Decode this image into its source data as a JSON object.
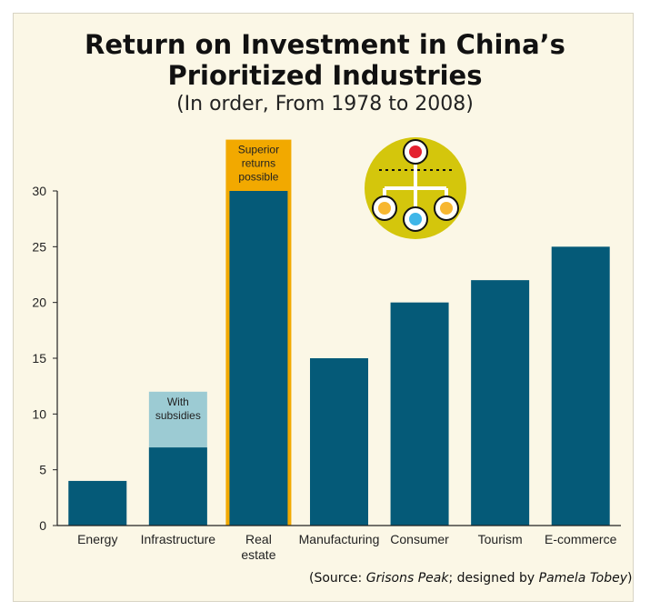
{
  "title_line1": "Return on Investment in China’s",
  "title_line2": "Prioritized  Industries",
  "subtitle": "(In order, From 1978 to 2008)",
  "source": {
    "prefix": "(Source: ",
    "org": "Grisons Peak",
    "middle": "; designed by ",
    "designer": "Pamela Tobey",
    "suffix": ")"
  },
  "icon": "org-chart-icon",
  "colors": {
    "bar": "#055a78",
    "subsidy": "#9ccbd3",
    "superior": "#f2a900",
    "background": "#fbf7e6",
    "icon_circle": "#d4c60c",
    "icon_red": "#e4202f",
    "icon_yellow": "#f7b731",
    "icon_blue": "#3fb6e8"
  },
  "chart_data": {
    "type": "bar",
    "categories": [
      "Energy",
      "Infrastructure",
      "Real estate",
      "Manufacturing",
      "Consumer",
      "Tourism",
      "E-commerce"
    ],
    "category_lines": [
      [
        "Energy"
      ],
      [
        "Infrastructure"
      ],
      [
        "Real",
        "estate"
      ],
      [
        "Manufacturing"
      ],
      [
        "Consumer"
      ],
      [
        "Tourism"
      ],
      [
        "E-commerce"
      ]
    ],
    "values": [
      4,
      7,
      30,
      15,
      20,
      22,
      25
    ],
    "ylim": [
      0,
      30
    ],
    "yticks": [
      0,
      5,
      10,
      15,
      20,
      25,
      30
    ],
    "grid": false,
    "annotations": [
      {
        "category": "Infrastructure",
        "lines": [
          "With",
          "subsidies"
        ],
        "value": 12
      },
      {
        "category": "Real estate",
        "lines": [
          "Superior",
          "returns",
          "possible"
        ],
        "value": 34.6
      }
    ]
  }
}
